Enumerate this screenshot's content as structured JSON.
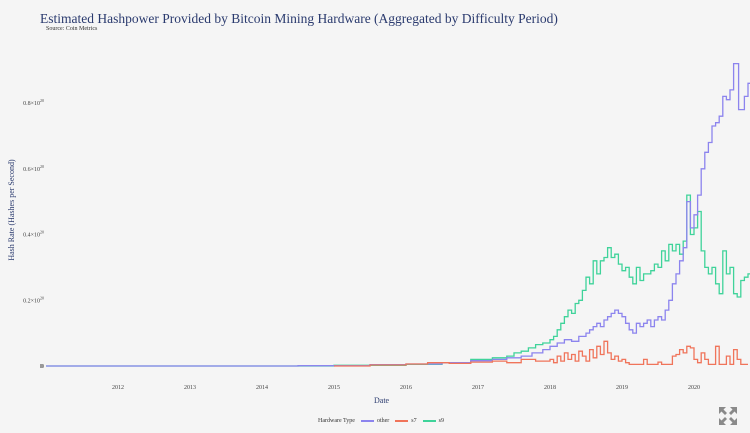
{
  "chart_data": {
    "type": "line",
    "step": true,
    "title": "Estimated Hashpower Provided by Bitcoin Mining Hardware  (Aggregated by Difficulty Period)",
    "subtitle": "Source: Coin Metrics",
    "xlabel": "Date",
    "ylabel": "Hash Rate (Hashes per Second)",
    "x_ticks": [
      "2012",
      "2013",
      "2014",
      "2015",
      "2016",
      "2017",
      "2018",
      "2019",
      "2020"
    ],
    "y_ticks": [
      "0",
      "0.2×10^20",
      "0.4×10^20",
      "0.6×10^20",
      "0.8×10^20"
    ],
    "y_tick_values": [
      0,
      0.2,
      0.4,
      0.6,
      0.8
    ],
    "xlim": [
      2011.0,
      2020.4
    ],
    "ylim": [
      0,
      0.93
    ],
    "y_unit": "×10^20 H/s",
    "grid": false,
    "legend_title": "Hardware Type",
    "legend_position": "bottom",
    "series": [
      {
        "name": "other",
        "color": "#8c84ee",
        "points": [
          [
            2011.0,
            0
          ],
          [
            2014.5,
            0.001
          ],
          [
            2015.5,
            0.004
          ],
          [
            2016.0,
            0.006
          ],
          [
            2016.5,
            0.01
          ],
          [
            2016.9,
            0.016
          ],
          [
            2017.2,
            0.02
          ],
          [
            2017.4,
            0.025
          ],
          [
            2017.6,
            0.03
          ],
          [
            2017.75,
            0.04
          ],
          [
            2017.9,
            0.05
          ],
          [
            2018.0,
            0.06
          ],
          [
            2018.1,
            0.07
          ],
          [
            2018.2,
            0.08
          ],
          [
            2018.3,
            0.075
          ],
          [
            2018.4,
            0.09
          ],
          [
            2018.5,
            0.1
          ],
          [
            2018.55,
            0.11
          ],
          [
            2018.6,
            0.12
          ],
          [
            2018.65,
            0.13
          ],
          [
            2018.7,
            0.12
          ],
          [
            2018.75,
            0.14
          ],
          [
            2018.8,
            0.15
          ],
          [
            2018.85,
            0.16
          ],
          [
            2018.9,
            0.17
          ],
          [
            2018.95,
            0.16
          ],
          [
            2019.0,
            0.15
          ],
          [
            2019.05,
            0.13
          ],
          [
            2019.1,
            0.11
          ],
          [
            2019.15,
            0.1
          ],
          [
            2019.2,
            0.13
          ],
          [
            2019.25,
            0.12
          ],
          [
            2019.3,
            0.13
          ],
          [
            2019.35,
            0.14
          ],
          [
            2019.4,
            0.12
          ],
          [
            2019.45,
            0.14
          ],
          [
            2019.5,
            0.15
          ],
          [
            2019.55,
            0.14
          ],
          [
            2019.6,
            0.17
          ],
          [
            2019.65,
            0.2
          ],
          [
            2019.7,
            0.25
          ],
          [
            2019.75,
            0.28
          ],
          [
            2019.8,
            0.32
          ],
          [
            2019.85,
            0.36
          ],
          [
            2019.9,
            0.5
          ],
          [
            2019.95,
            0.42
          ],
          [
            2020.0,
            0.46
          ],
          [
            2020.05,
            0.52
          ],
          [
            2020.1,
            0.6
          ],
          [
            2020.15,
            0.65
          ],
          [
            2020.2,
            0.68
          ],
          [
            2020.25,
            0.73
          ],
          [
            2020.3,
            0.74
          ],
          [
            2020.35,
            0.76
          ],
          [
            2020.4,
            0.82
          ],
          [
            2020.45,
            0.81
          ],
          [
            2020.5,
            0.84
          ],
          [
            2020.55,
            0.92
          ],
          [
            2020.62,
            0.78
          ],
          [
            2020.7,
            0.82
          ],
          [
            2020.75,
            0.86
          ],
          [
            2020.8,
            0.76
          ]
        ]
      },
      {
        "name": "s7",
        "color": "#f0745a",
        "points": [
          [
            2015.0,
            0
          ],
          [
            2015.5,
            0.003
          ],
          [
            2016.0,
            0.006
          ],
          [
            2016.3,
            0.01
          ],
          [
            2016.6,
            0.008
          ],
          [
            2016.9,
            0.012
          ],
          [
            2017.2,
            0.015
          ],
          [
            2017.4,
            0.01
          ],
          [
            2017.6,
            0.02
          ],
          [
            2017.8,
            0.015
          ],
          [
            2018.0,
            0.02
          ],
          [
            2018.05,
            0.01
          ],
          [
            2018.1,
            0.03
          ],
          [
            2018.15,
            0.015
          ],
          [
            2018.2,
            0.04
          ],
          [
            2018.25,
            0.02
          ],
          [
            2018.3,
            0.035
          ],
          [
            2018.35,
            0.015
          ],
          [
            2018.4,
            0.045
          ],
          [
            2018.45,
            0.03
          ],
          [
            2018.5,
            0.015
          ],
          [
            2018.55,
            0.05
          ],
          [
            2018.6,
            0.025
          ],
          [
            2018.65,
            0.06
          ],
          [
            2018.7,
            0.035
          ],
          [
            2018.75,
            0.075
          ],
          [
            2018.8,
            0.04
          ],
          [
            2018.85,
            0.02
          ],
          [
            2018.9,
            0.03
          ],
          [
            2018.95,
            0.015
          ],
          [
            2019.0,
            0.02
          ],
          [
            2019.05,
            0.01
          ],
          [
            2019.1,
            0.005
          ],
          [
            2019.3,
            0.02
          ],
          [
            2019.35,
            0.005
          ],
          [
            2019.5,
            0.012
          ],
          [
            2019.55,
            0.005
          ],
          [
            2019.7,
            0.03
          ],
          [
            2019.75,
            0.035
          ],
          [
            2019.8,
            0.05
          ],
          [
            2019.85,
            0.04
          ],
          [
            2019.9,
            0.06
          ],
          [
            2019.95,
            0.055
          ],
          [
            2020.0,
            0.02
          ],
          [
            2020.05,
            0.01
          ],
          [
            2020.1,
            0.04
          ],
          [
            2020.15,
            0.02
          ],
          [
            2020.2,
            0.005
          ],
          [
            2020.3,
            0.06
          ],
          [
            2020.35,
            0.005
          ],
          [
            2020.45,
            0.03
          ],
          [
            2020.5,
            0.005
          ],
          [
            2020.55,
            0.05
          ],
          [
            2020.6,
            0.02
          ],
          [
            2020.65,
            0.005
          ],
          [
            2020.75,
            0.005
          ]
        ]
      },
      {
        "name": "s9",
        "color": "#3fd39a",
        "points": [
          [
            2011.0,
            0
          ],
          [
            2015.0,
            0.002
          ],
          [
            2016.0,
            0.005
          ],
          [
            2016.5,
            0.01
          ],
          [
            2016.9,
            0.02
          ],
          [
            2017.2,
            0.025
          ],
          [
            2017.4,
            0.03
          ],
          [
            2017.5,
            0.04
          ],
          [
            2017.6,
            0.045
          ],
          [
            2017.7,
            0.055
          ],
          [
            2017.8,
            0.065
          ],
          [
            2017.9,
            0.07
          ],
          [
            2018.0,
            0.08
          ],
          [
            2018.05,
            0.09
          ],
          [
            2018.1,
            0.11
          ],
          [
            2018.15,
            0.13
          ],
          [
            2018.2,
            0.15
          ],
          [
            2018.25,
            0.17
          ],
          [
            2018.3,
            0.16
          ],
          [
            2018.35,
            0.19
          ],
          [
            2018.4,
            0.2
          ],
          [
            2018.45,
            0.23
          ],
          [
            2018.5,
            0.27
          ],
          [
            2018.55,
            0.25
          ],
          [
            2018.6,
            0.32
          ],
          [
            2018.65,
            0.28
          ],
          [
            2018.7,
            0.32
          ],
          [
            2018.75,
            0.33
          ],
          [
            2018.8,
            0.36
          ],
          [
            2018.85,
            0.33
          ],
          [
            2018.9,
            0.34
          ],
          [
            2018.95,
            0.31
          ],
          [
            2019.0,
            0.29
          ],
          [
            2019.05,
            0.3
          ],
          [
            2019.1,
            0.27
          ],
          [
            2019.15,
            0.25
          ],
          [
            2019.2,
            0.3
          ],
          [
            2019.25,
            0.26
          ],
          [
            2019.3,
            0.28
          ],
          [
            2019.4,
            0.29
          ],
          [
            2019.45,
            0.31
          ],
          [
            2019.5,
            0.3
          ],
          [
            2019.55,
            0.35
          ],
          [
            2019.6,
            0.32
          ],
          [
            2019.65,
            0.37
          ],
          [
            2019.7,
            0.35
          ],
          [
            2019.75,
            0.37
          ],
          [
            2019.8,
            0.34
          ],
          [
            2019.85,
            0.38
          ],
          [
            2019.9,
            0.52
          ],
          [
            2019.95,
            0.4
          ],
          [
            2020.0,
            0.42
          ],
          [
            2020.05,
            0.47
          ],
          [
            2020.1,
            0.35
          ],
          [
            2020.15,
            0.3
          ],
          [
            2020.2,
            0.28
          ],
          [
            2020.25,
            0.3
          ],
          [
            2020.3,
            0.25
          ],
          [
            2020.35,
            0.22
          ],
          [
            2020.4,
            0.35
          ],
          [
            2020.45,
            0.28
          ],
          [
            2020.5,
            0.3
          ],
          [
            2020.55,
            0.22
          ],
          [
            2020.6,
            0.21
          ],
          [
            2020.65,
            0.26
          ],
          [
            2020.7,
            0.27
          ],
          [
            2020.75,
            0.28
          ],
          [
            2020.8,
            0.38
          ]
        ]
      }
    ]
  },
  "ui": {
    "expand_icon": "fullscreen-arrows-icon"
  }
}
